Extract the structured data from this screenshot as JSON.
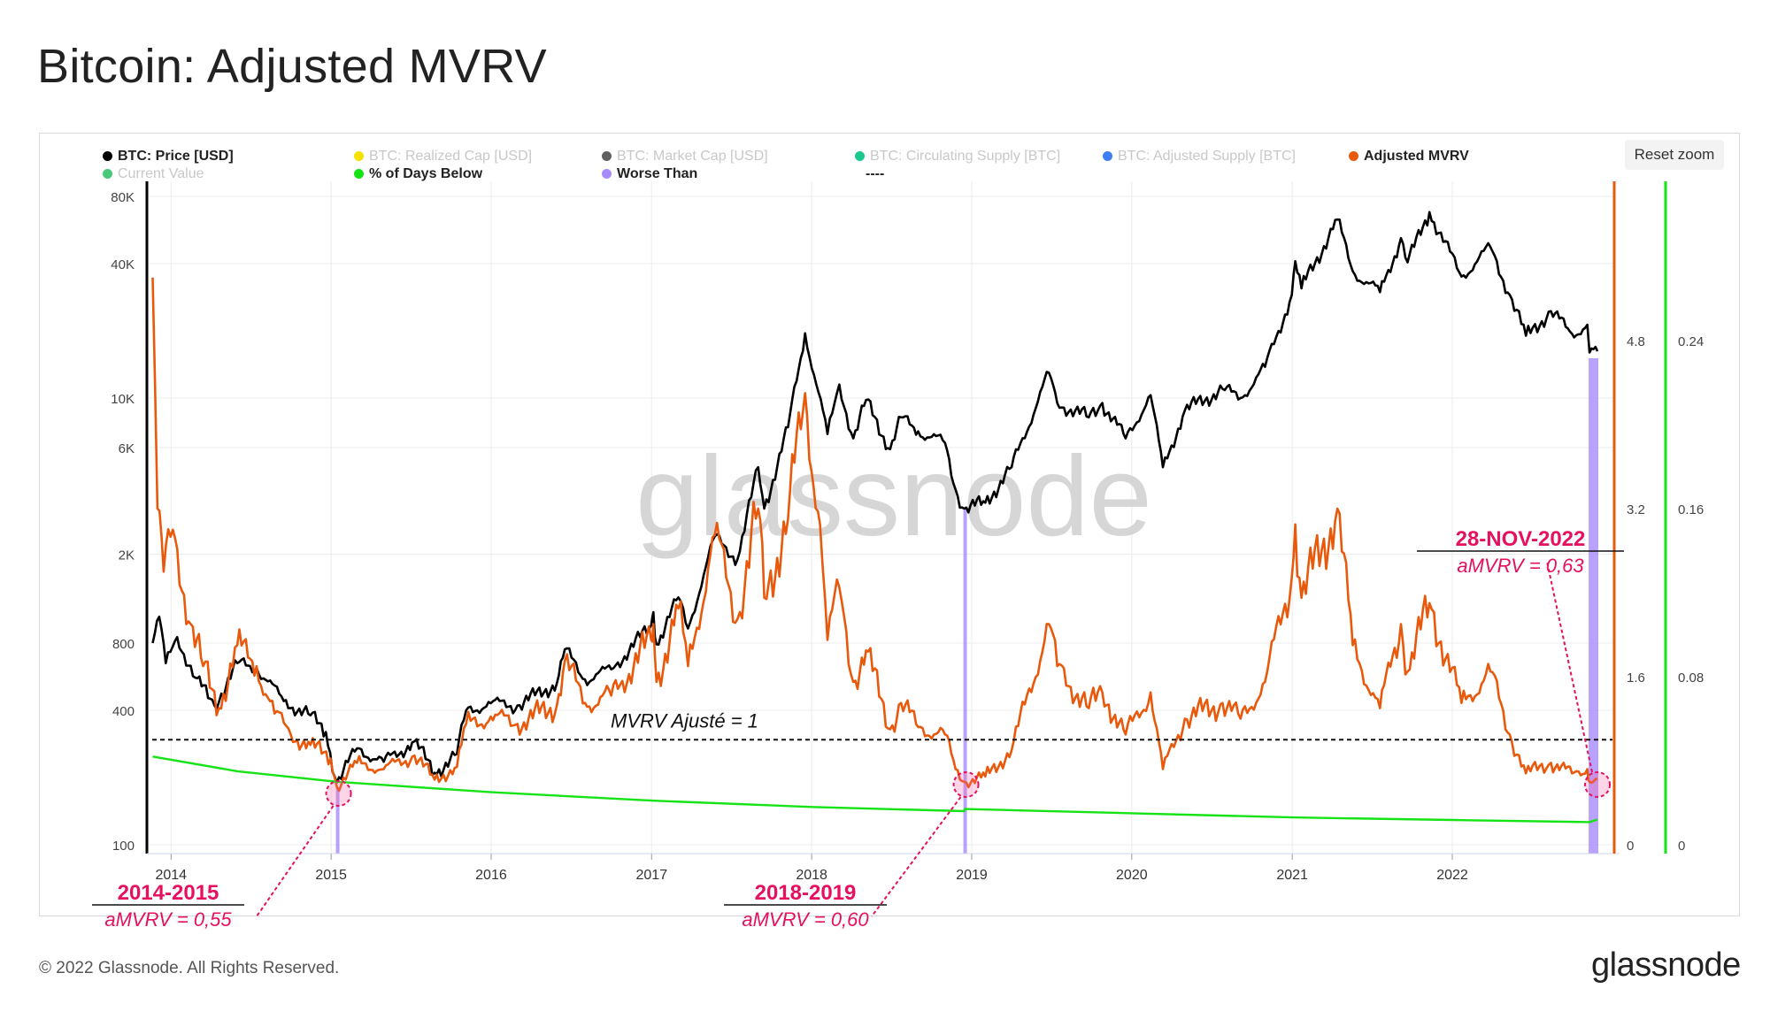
{
  "header": {
    "title": "Bitcoin: Adjusted MVRV"
  },
  "toolbar": {
    "reset_zoom_label": "Reset zoom"
  },
  "legend": [
    {
      "label": "BTC: Price [USD]",
      "color": "#000000",
      "active": true
    },
    {
      "label": "BTC: Realized Cap [USD]",
      "color": "#f5e000",
      "active": false
    },
    {
      "label": "BTC: Market Cap [USD]",
      "color": "#606060",
      "active": false
    },
    {
      "label": "BTC: Circulating Supply [BTC]",
      "color": "#1bc98e",
      "active": false
    },
    {
      "label": "BTC: Adjusted Supply [BTC]",
      "color": "#3d7ef5",
      "active": false
    },
    {
      "label": "Adjusted MVRV",
      "color": "#e8590c",
      "active": true
    },
    {
      "label": "Current Value",
      "color": "#49c97a",
      "active": false
    },
    {
      "label": "% of Days Below",
      "color": "#16e316",
      "active": true
    },
    {
      "label": "Worse Than",
      "color": "#a78bfa",
      "active": true
    },
    {
      "label": "----",
      "color": "",
      "active": true
    }
  ],
  "chart_data": {
    "type": "line",
    "x_axis": {
      "ticks": [
        "2014",
        "2015",
        "2016",
        "2017",
        "2018",
        "2019",
        "2020",
        "2021",
        "2022"
      ],
      "range": [
        "2013-11-15",
        "2022-11-28"
      ]
    },
    "y_axis_left": {
      "scale": "log",
      "ticks": [
        "80K",
        "40K",
        "10K",
        "6K",
        "2K",
        "800",
        "400",
        "100"
      ],
      "range": [
        100,
        80000
      ]
    },
    "y_axis_right_mvrv": {
      "ticks": [
        "4.8",
        "3.2",
        "1.6",
        "0"
      ],
      "range": [
        0,
        6.4
      ]
    },
    "y_axis_right_pct": {
      "ticks": [
        "0.24",
        "0.16",
        "0.08",
        "0"
      ],
      "range": [
        0,
        0.32
      ]
    },
    "series": [
      {
        "name": "BTC: Price [USD]",
        "color": "#000000",
        "axis": "left",
        "points": [
          [
            "2013-11-20",
            800
          ],
          [
            "2013-12-05",
            1050
          ],
          [
            "2013-12-20",
            650
          ],
          [
            "2014-01-15",
            850
          ],
          [
            "2014-02-25",
            560
          ],
          [
            "2014-04-10",
            420
          ],
          [
            "2014-06-01",
            650
          ],
          [
            "2014-07-15",
            620
          ],
          [
            "2014-09-15",
            440
          ],
          [
            "2014-11-15",
            380
          ],
          [
            "2014-12-20",
            320
          ],
          [
            "2015-01-14",
            190
          ],
          [
            "2015-03-01",
            270
          ],
          [
            "2015-05-01",
            235
          ],
          [
            "2015-07-10",
            290
          ],
          [
            "2015-08-25",
            210
          ],
          [
            "2015-10-15",
            255
          ],
          [
            "2015-11-05",
            400
          ],
          [
            "2015-12-31",
            430
          ],
          [
            "2016-03-01",
            420
          ],
          [
            "2016-05-30",
            530
          ],
          [
            "2016-06-17",
            750
          ],
          [
            "2016-08-02",
            550
          ],
          [
            "2016-10-01",
            610
          ],
          [
            "2016-12-31",
            960
          ],
          [
            "2017-01-05",
            1100
          ],
          [
            "2017-01-12",
            790
          ],
          [
            "2017-03-03",
            1280
          ],
          [
            "2017-03-25",
            930
          ],
          [
            "2017-05-25",
            2400
          ],
          [
            "2017-07-16",
            1900
          ],
          [
            "2017-09-01",
            4900
          ],
          [
            "2017-09-15",
            3200
          ],
          [
            "2017-11-08",
            7400
          ],
          [
            "2017-12-17",
            19500
          ],
          [
            "2018-02-06",
            6900
          ],
          [
            "2018-03-05",
            11500
          ],
          [
            "2018-04-06",
            6600
          ],
          [
            "2018-05-05",
            9800
          ],
          [
            "2018-06-29",
            5900
          ],
          [
            "2018-07-24",
            8200
          ],
          [
            "2018-09-01",
            7100
          ],
          [
            "2018-11-01",
            6300
          ],
          [
            "2018-11-25",
            3900
          ],
          [
            "2018-12-15",
            3200
          ],
          [
            "2019-02-01",
            3400
          ],
          [
            "2019-04-02",
            4900
          ],
          [
            "2019-06-26",
            13000
          ],
          [
            "2019-07-15",
            9500
          ],
          [
            "2019-09-25",
            8200
          ],
          [
            "2019-10-26",
            9500
          ],
          [
            "2019-12-18",
            6600
          ],
          [
            "2020-02-13",
            10300
          ],
          [
            "2020-03-12",
            4900
          ],
          [
            "2020-05-01",
            8800
          ],
          [
            "2020-07-26",
            11000
          ],
          [
            "2020-09-05",
            10000
          ],
          [
            "2020-10-31",
            13800
          ],
          [
            "2020-12-31",
            29000
          ],
          [
            "2021-01-08",
            41000
          ],
          [
            "2021-01-22",
            31000
          ],
          [
            "2021-04-14",
            63000
          ],
          [
            "2021-05-19",
            37000
          ],
          [
            "2021-07-20",
            29800
          ],
          [
            "2021-09-06",
            52000
          ],
          [
            "2021-09-21",
            40500
          ],
          [
            "2021-11-10",
            68000
          ],
          [
            "2022-01-22",
            35000
          ],
          [
            "2022-03-29",
            47500
          ],
          [
            "2022-05-12",
            29000
          ],
          [
            "2022-06-18",
            19000
          ],
          [
            "2022-08-14",
            24500
          ],
          [
            "2022-10-01",
            19400
          ],
          [
            "2022-11-05",
            21300
          ],
          [
            "2022-11-10",
            16000
          ],
          [
            "2022-11-28",
            16200
          ]
        ]
      },
      {
        "name": "Adjusted MVRV",
        "color": "#e8590c",
        "axis": "right",
        "points": [
          [
            "2013-11-20",
            5.4
          ],
          [
            "2013-12-01",
            3.2
          ],
          [
            "2013-12-15",
            2.6
          ],
          [
            "2014-01-05",
            3.0
          ],
          [
            "2014-02-15",
            2.1
          ],
          [
            "2014-03-15",
            1.7
          ],
          [
            "2014-04-20",
            1.3
          ],
          [
            "2014-06-01",
            1.9
          ],
          [
            "2014-07-15",
            1.7
          ],
          [
            "2014-08-25",
            1.25
          ],
          [
            "2014-10-01",
            1.05
          ],
          [
            "2014-11-15",
            0.95
          ],
          [
            "2014-12-31",
            0.82
          ],
          [
            "2015-01-14",
            0.55
          ],
          [
            "2015-03-01",
            0.78
          ],
          [
            "2015-05-01",
            0.72
          ],
          [
            "2015-07-10",
            0.85
          ],
          [
            "2015-08-25",
            0.62
          ],
          [
            "2015-10-15",
            0.74
          ],
          [
            "2015-11-05",
            1.15
          ],
          [
            "2015-12-31",
            1.22
          ],
          [
            "2016-03-01",
            1.15
          ],
          [
            "2016-05-30",
            1.33
          ],
          [
            "2016-06-17",
            1.75
          ],
          [
            "2016-08-02",
            1.35
          ],
          [
            "2016-10-01",
            1.42
          ],
          [
            "2016-12-31",
            1.95
          ],
          [
            "2017-01-05",
            2.1
          ],
          [
            "2017-01-12",
            1.55
          ],
          [
            "2017-03-03",
            2.25
          ],
          [
            "2017-03-25",
            1.7
          ],
          [
            "2017-05-25",
            2.95
          ],
          [
            "2017-07-16",
            2.15
          ],
          [
            "2017-09-01",
            3.2
          ],
          [
            "2017-09-15",
            2.35
          ],
          [
            "2017-11-08",
            3.1
          ],
          [
            "2017-12-17",
            4.3
          ],
          [
            "2018-01-20",
            3.05
          ],
          [
            "2018-02-06",
            1.95
          ],
          [
            "2018-03-05",
            2.45
          ],
          [
            "2018-04-06",
            1.55
          ],
          [
            "2018-05-05",
            1.85
          ],
          [
            "2018-06-29",
            1.1
          ],
          [
            "2018-07-24",
            1.35
          ],
          [
            "2018-09-01",
            1.12
          ],
          [
            "2018-11-01",
            1.05
          ],
          [
            "2018-11-25",
            0.72
          ],
          [
            "2018-12-15",
            0.6
          ],
          [
            "2019-02-01",
            0.65
          ],
          [
            "2019-04-02",
            0.9
          ],
          [
            "2019-06-26",
            2.1
          ],
          [
            "2019-07-15",
            1.7
          ],
          [
            "2019-09-25",
            1.3
          ],
          [
            "2019-10-26",
            1.45
          ],
          [
            "2019-12-18",
            1.05
          ],
          [
            "2020-02-13",
            1.45
          ],
          [
            "2020-03-12",
            0.72
          ],
          [
            "2020-05-01",
            1.2
          ],
          [
            "2020-07-26",
            1.35
          ],
          [
            "2020-09-05",
            1.2
          ],
          [
            "2020-10-31",
            1.55
          ],
          [
            "2020-12-31",
            2.55
          ],
          [
            "2021-01-08",
            3.05
          ],
          [
            "2021-01-22",
            2.35
          ],
          [
            "2021-04-14",
            3.2
          ],
          [
            "2021-05-19",
            1.9
          ],
          [
            "2021-07-20",
            1.3
          ],
          [
            "2021-09-06",
            2.1
          ],
          [
            "2021-09-21",
            1.65
          ],
          [
            "2021-11-10",
            2.3
          ],
          [
            "2022-01-22",
            1.35
          ],
          [
            "2022-03-29",
            1.65
          ],
          [
            "2022-05-12",
            1.05
          ],
          [
            "2022-06-18",
            0.68
          ],
          [
            "2022-08-14",
            0.78
          ],
          [
            "2022-10-01",
            0.68
          ],
          [
            "2022-11-05",
            0.72
          ],
          [
            "2022-11-10",
            0.6
          ],
          [
            "2022-11-28",
            0.63
          ]
        ]
      },
      {
        "name": "% of Days Below",
        "color": "#16e316",
        "axis": "right_pct",
        "points": [
          [
            "2013-11-20",
            0.042
          ],
          [
            "2014-06-01",
            0.035
          ],
          [
            "2015-01-14",
            0.03
          ],
          [
            "2016-01-01",
            0.025
          ],
          [
            "2017-01-01",
            0.021
          ],
          [
            "2018-01-01",
            0.018
          ],
          [
            "2018-12-15",
            0.016
          ],
          [
            "2018-12-16",
            0.017
          ],
          [
            "2020-01-01",
            0.015
          ],
          [
            "2021-01-01",
            0.013
          ],
          [
            "2022-01-01",
            0.0118
          ],
          [
            "2022-11-10",
            0.0108
          ],
          [
            "2022-11-28",
            0.012
          ]
        ]
      }
    ],
    "worse_than_bands": [
      "2015-01-14",
      "2018-12-15",
      "2022-11-10"
    ],
    "reference_line": {
      "label": "MVRV Ajusté = 1",
      "value": 1
    },
    "annotations": [
      {
        "date": "2015-01-14",
        "title": "2014-2015",
        "subtitle": "aMVRV = 0,55"
      },
      {
        "date": "2018-12-15",
        "title": "2018-2019",
        "subtitle": "aMVRV = 0,60"
      },
      {
        "date": "2022-11-28",
        "title": "28-NOV-2022",
        "subtitle": "aMVRV = 0,63"
      }
    ],
    "grid": true
  },
  "watermark": {
    "text": "glassnode"
  },
  "footer": {
    "copyright": "© 2022 Glassnode. All Rights Reserved.",
    "brand": "glassnode"
  }
}
